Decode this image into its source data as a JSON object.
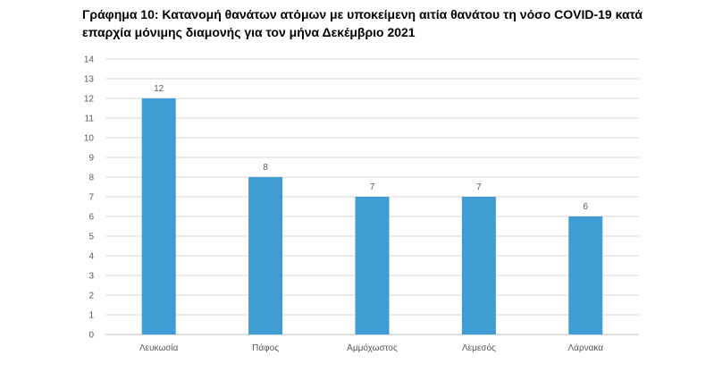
{
  "chart_data": {
    "type": "bar",
    "title": "Γράφημα 10: Κατανομή θανάτων ατόμων με υποκείμενη αιτία θανάτου τη νόσο COVID-19 κατά επαρχία μόνιμης διαμονής για τον μήνα Δεκέμβριο 2021",
    "xlabel": "",
    "ylabel": "",
    "categories": [
      "Λευκωσία",
      "Πάφος",
      "Αμμόχωστος",
      "Λεμεσός",
      "Λάρνακα"
    ],
    "values": [
      12,
      8,
      7,
      7,
      6
    ],
    "ylim": [
      0,
      14
    ],
    "yticks": [
      0,
      1,
      2,
      3,
      4,
      5,
      6,
      7,
      8,
      9,
      10,
      11,
      12,
      13,
      14
    ],
    "grid": true,
    "legend": "none",
    "data_labels": true,
    "colors": {
      "bar": "#3F9DD3",
      "grid": "#D9D9D9",
      "text": "#595959"
    }
  }
}
